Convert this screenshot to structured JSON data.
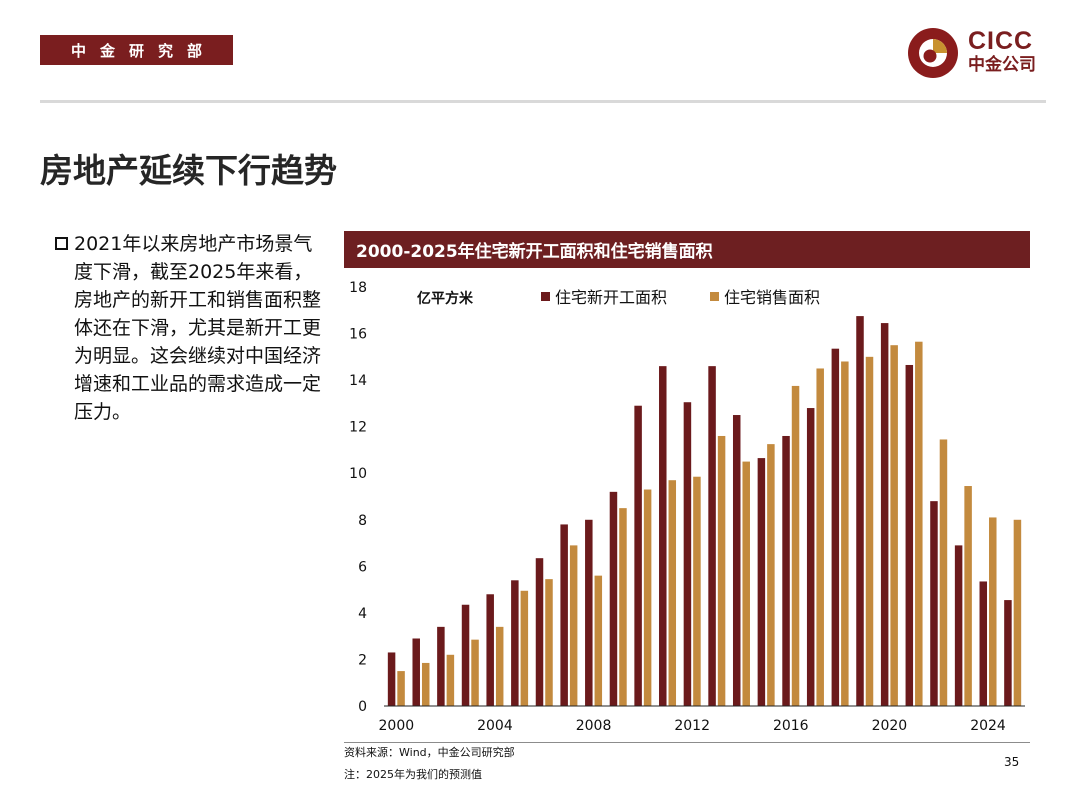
{
  "header": {
    "dept_label": "中金研究部",
    "logo_en": "CICC",
    "logo_cn": "中金公司"
  },
  "page_title": "房地产延续下行趋势",
  "bullet": "2021年以来房地产市场景气度下滑，截至2025年来看，房地产的新开工和销售面积整体还在下滑，尤其是新开工更为明显。这会继续对中国经济增速和工业品的需求造成一定压力。",
  "chart_data": {
    "type": "bar",
    "title": "2000-2025年住宅新开工面积和住宅销售面积",
    "ylabel": "亿平方米",
    "xlabel": "",
    "ylim": [
      0,
      18
    ],
    "yticks": [
      0,
      2,
      4,
      6,
      8,
      10,
      12,
      14,
      16,
      18
    ],
    "xtick_labels": [
      "2000",
      "2004",
      "2008",
      "2012",
      "2016",
      "2020",
      "2024"
    ],
    "categories": [
      "2000",
      "2001",
      "2002",
      "2003",
      "2004",
      "2005",
      "2006",
      "2007",
      "2008",
      "2009",
      "2010",
      "2011",
      "2012",
      "2013",
      "2014",
      "2015",
      "2016",
      "2017",
      "2018",
      "2019",
      "2020",
      "2021",
      "2022",
      "2023",
      "2024",
      "2025"
    ],
    "legend_position": "top",
    "grid": false,
    "series": [
      {
        "name": "住宅新开工面积",
        "color": "#6b1a1c",
        "values": [
          2.3,
          2.9,
          3.4,
          4.35,
          4.8,
          5.4,
          6.35,
          7.8,
          8.0,
          9.2,
          12.9,
          14.6,
          13.05,
          14.6,
          12.5,
          10.65,
          11.6,
          12.8,
          15.35,
          16.75,
          16.45,
          14.65,
          8.8,
          6.9,
          5.35,
          4.55
        ]
      },
      {
        "name": "住宅销售面积",
        "color": "#c38a3e",
        "values": [
          1.5,
          1.85,
          2.2,
          2.85,
          3.4,
          4.95,
          5.45,
          6.9,
          5.6,
          8.5,
          9.3,
          9.7,
          9.85,
          11.6,
          10.5,
          11.25,
          13.75,
          14.5,
          14.8,
          15.0,
          15.5,
          15.65,
          11.45,
          9.45,
          8.1,
          8.0
        ]
      }
    ]
  },
  "source_note": "资料来源：Wind，中金公司研究部",
  "note": "注：2025年为我们的预测值",
  "page_number": "35",
  "colors": {
    "brand_red": "#7a1e1f",
    "chart_header_bg": "#6d1f21"
  }
}
